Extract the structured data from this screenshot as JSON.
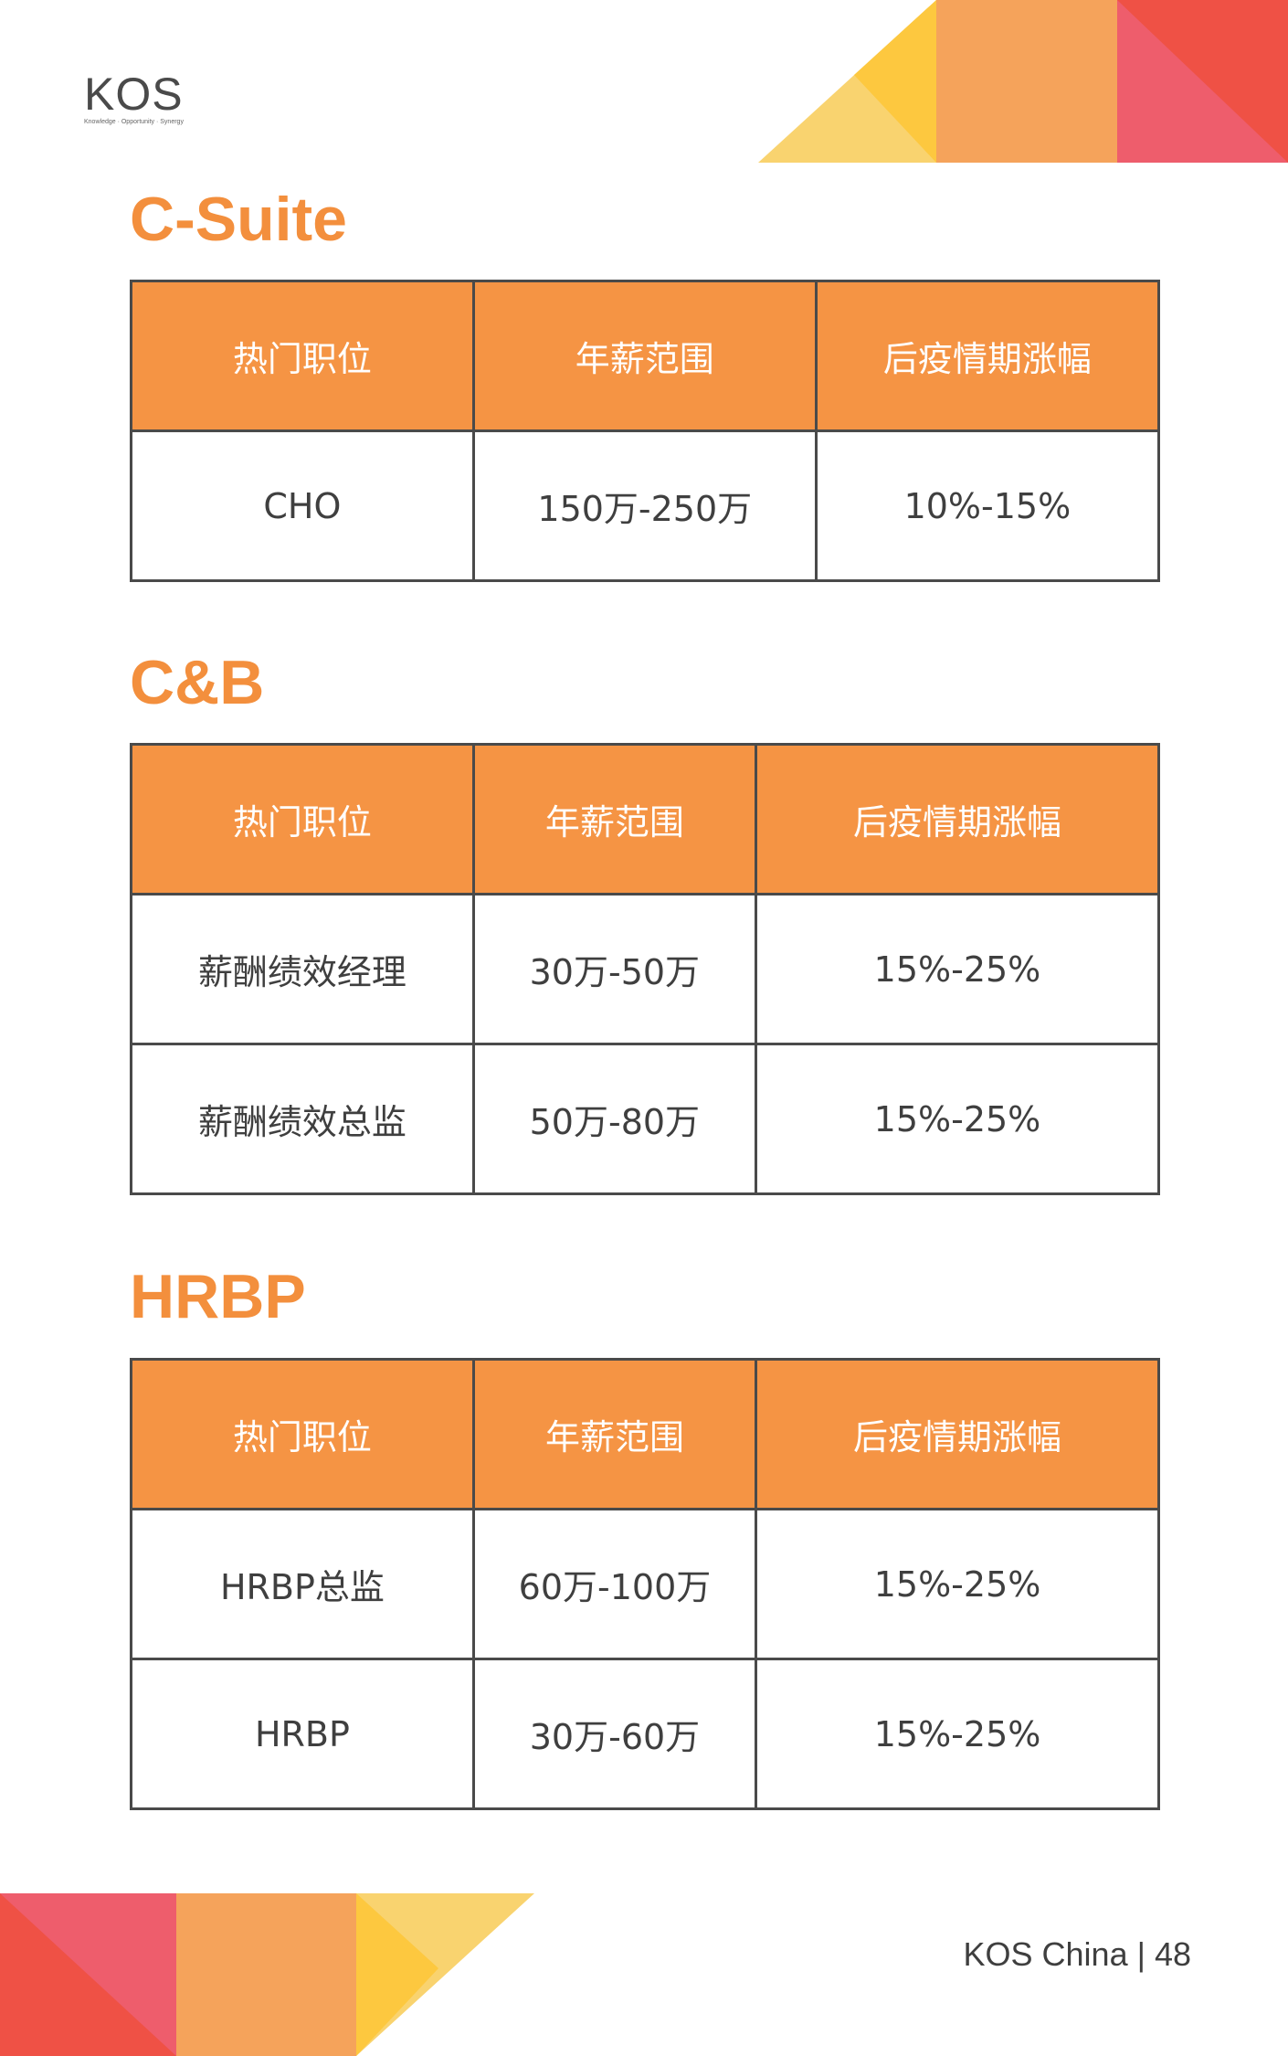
{
  "brand": {
    "logo_text": "KOS",
    "tagline": "Knowledge · Opportunity · Synergy"
  },
  "colors": {
    "accent_orange": "#f38f3d",
    "header_fill": "#f59444",
    "yellow": "#fdc83f",
    "light_yellow": "#f9d36f",
    "peach": "#f5a35b",
    "pink": "#ee5d6c",
    "red": "#ef5145"
  },
  "sections": [
    {
      "title": "C-Suite",
      "headers": [
        "热门职位",
        "年薪范围",
        "后疫情期涨幅"
      ],
      "rows": [
        [
          "CHO",
          "150万-250万",
          "10%-15%"
        ]
      ]
    },
    {
      "title": "C&B",
      "headers": [
        "热门职位",
        "年薪范围",
        "后疫情期涨幅"
      ],
      "rows": [
        [
          "薪酬绩效经理",
          "30万-50万",
          "15%-25%"
        ],
        [
          "薪酬绩效总监",
          "50万-80万",
          "15%-25%"
        ]
      ]
    },
    {
      "title": "HRBP",
      "headers": [
        "热门职位",
        "年薪范围",
        "后疫情期涨幅"
      ],
      "rows": [
        [
          "HRBP总监",
          "60万-100万",
          "15%-25%"
        ],
        [
          "HRBP",
          "30万-60万",
          "15%-25%"
        ]
      ]
    }
  ],
  "footer": {
    "text": "KOS China | 48"
  }
}
